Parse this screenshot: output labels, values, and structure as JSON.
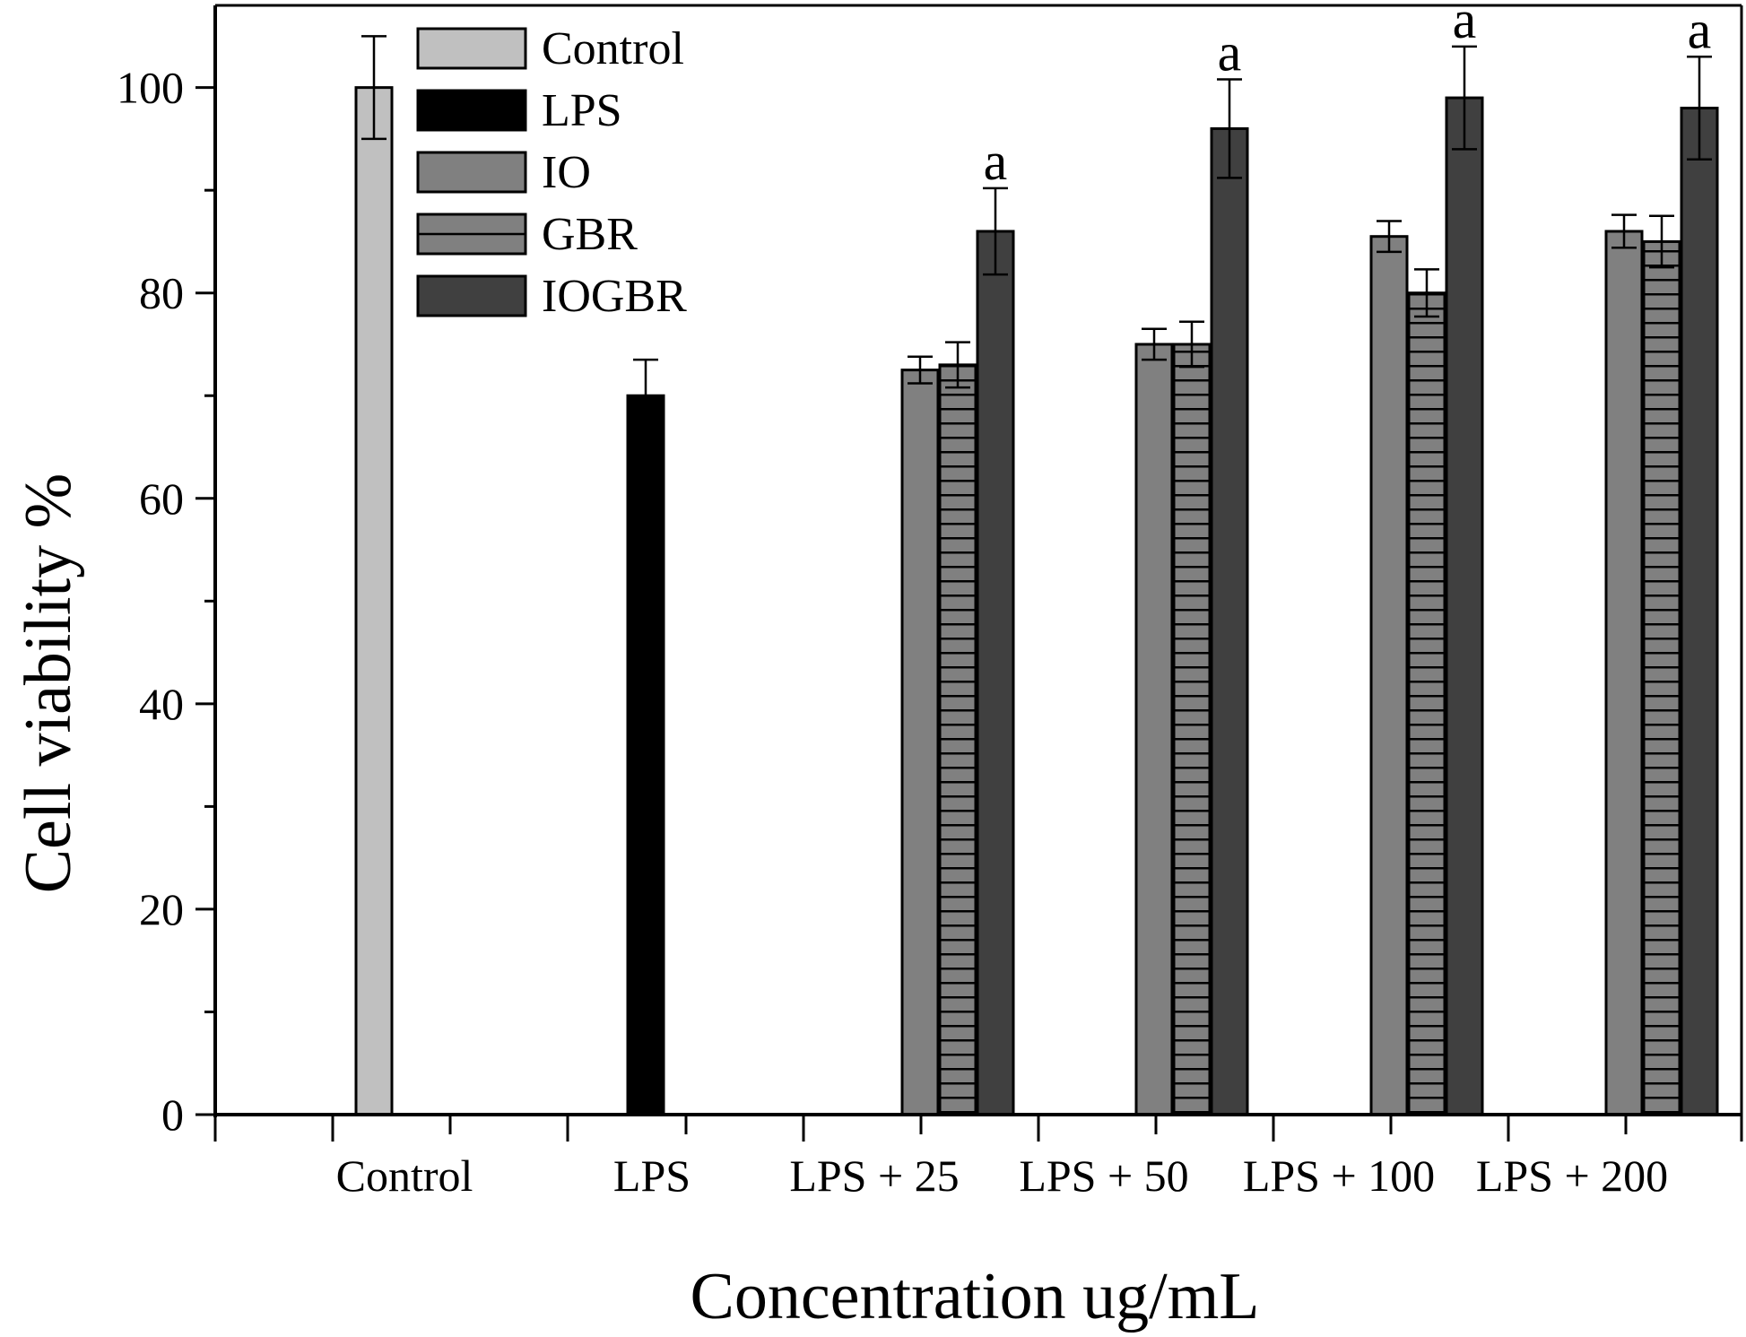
{
  "chart_data": {
    "type": "bar",
    "title": "",
    "xlabel": "Concentration ug/mL",
    "ylabel": "Cell viability %",
    "ylim": [
      0,
      108
    ],
    "yticks": [
      0,
      20,
      40,
      60,
      80,
      100
    ],
    "yminor": [
      10,
      30,
      50,
      70,
      90
    ],
    "legend_position": "top-left",
    "categories": [
      "Control",
      "LPS",
      "LPS + 25",
      "LPS + 50",
      "LPS + 100",
      "LPS + 200"
    ],
    "series": [
      {
        "name": "Control",
        "color": "#c0c0c0",
        "pattern": "solid",
        "values": [
          100,
          null,
          null,
          null,
          null,
          null
        ],
        "errors": [
          5,
          null,
          null,
          null,
          null,
          null
        ],
        "labels": [
          "",
          "",
          "",
          "",
          "",
          ""
        ]
      },
      {
        "name": "LPS",
        "color": "#000000",
        "pattern": "solid",
        "values": [
          null,
          70,
          null,
          null,
          null,
          null
        ],
        "errors": [
          null,
          3.5,
          null,
          null,
          null,
          null
        ],
        "labels": [
          "",
          "",
          "",
          "",
          "",
          ""
        ]
      },
      {
        "name": "IO",
        "color": "#808080",
        "pattern": "solid",
        "values": [
          null,
          null,
          72.5,
          75,
          85.5,
          86
        ],
        "errors": [
          null,
          null,
          1.3,
          1.5,
          1.5,
          1.6
        ],
        "labels": [
          "",
          "",
          "",
          "",
          "",
          ""
        ]
      },
      {
        "name": "GBR",
        "color": "#808080",
        "pattern": "horizontal-lines",
        "values": [
          null,
          null,
          73,
          75,
          80,
          85
        ],
        "errors": [
          null,
          null,
          2.2,
          2.2,
          2.3,
          2.5
        ],
        "labels": [
          "",
          "",
          "",
          "",
          "",
          ""
        ]
      },
      {
        "name": "IOGBR",
        "color": "#404040",
        "pattern": "solid",
        "values": [
          null,
          null,
          86,
          96,
          99,
          98
        ],
        "errors": [
          null,
          null,
          4.2,
          4.8,
          5,
          5
        ],
        "labels": [
          "",
          "",
          "a",
          "a",
          "a",
          "a"
        ]
      }
    ]
  }
}
